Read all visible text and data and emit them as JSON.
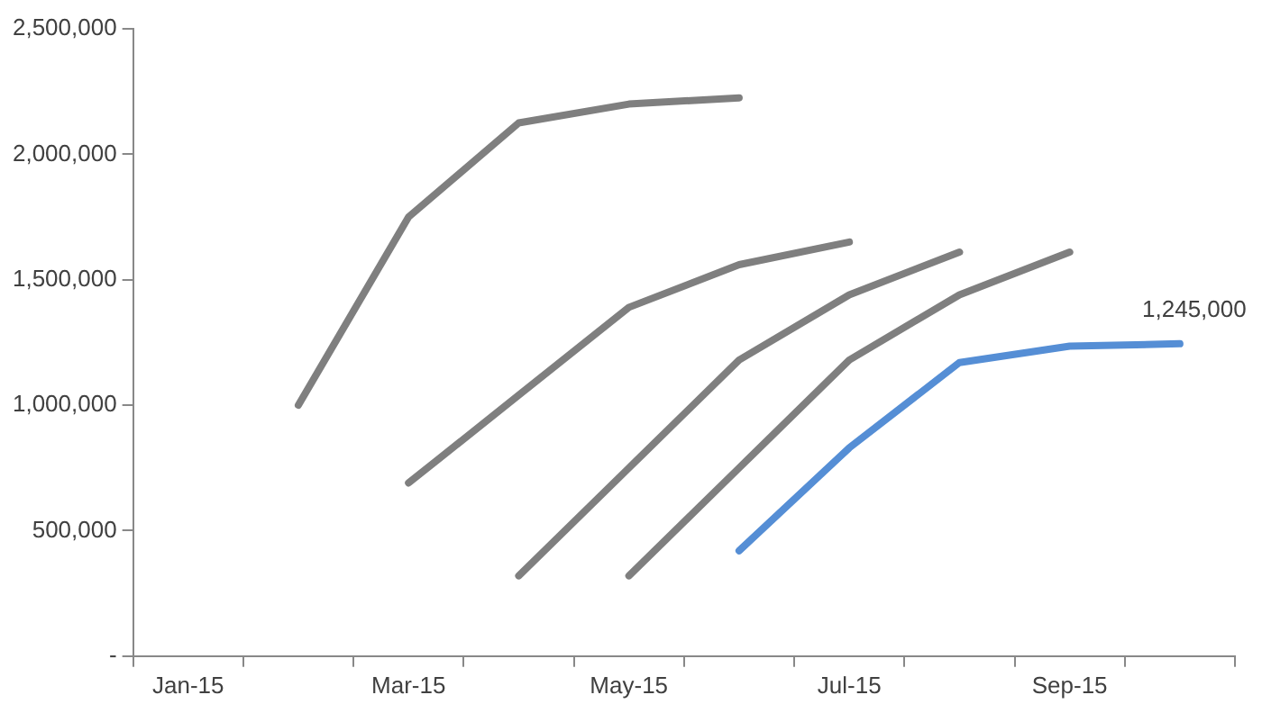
{
  "chart_data": {
    "type": "line",
    "categories": [
      "Jan-15",
      null,
      "Mar-15",
      null,
      "May-15",
      null,
      "Jul-15",
      null,
      "Sep-15",
      null
    ],
    "series": [
      {
        "color": "#7f7f7f",
        "values": [
          null,
          1000000,
          1750000,
          2125000,
          2200000,
          2225000,
          null,
          null,
          null,
          null
        ]
      },
      {
        "color": "#7f7f7f",
        "values": [
          null,
          null,
          690000,
          1040000,
          1390000,
          1560000,
          1650000,
          null,
          null,
          null
        ]
      },
      {
        "color": "#7f7f7f",
        "values": [
          null,
          null,
          null,
          320000,
          750000,
          1180000,
          1440000,
          1610000,
          null,
          null
        ]
      },
      {
        "color": "#7f7f7f",
        "values": [
          null,
          null,
          null,
          null,
          320000,
          750000,
          1180000,
          1440000,
          1610000,
          null
        ]
      },
      {
        "color": "#558ed5",
        "values": [
          null,
          null,
          null,
          null,
          null,
          420000,
          830000,
          1170000,
          1235000,
          1245000
        ],
        "value_labels": [
          null,
          null,
          null,
          null,
          null,
          null,
          null,
          null,
          null,
          "1,245,000"
        ]
      }
    ],
    "ylim": [
      0,
      2500000
    ],
    "yticks": [
      {
        "value": 0,
        "label": "-"
      },
      {
        "value": 500000,
        "label": "500,000"
      },
      {
        "value": 1000000,
        "label": "1,000,000"
      },
      {
        "value": 1500000,
        "label": "1,500,000"
      },
      {
        "value": 2000000,
        "label": "2,000,000"
      },
      {
        "value": 2500000,
        "label": "2,500,000"
      }
    ],
    "grid": false,
    "legend": false,
    "marker": "none",
    "line_style": "solid"
  }
}
